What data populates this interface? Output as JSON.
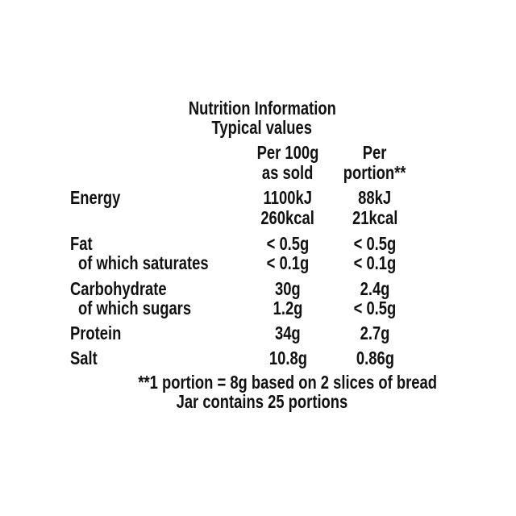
{
  "title": "Nutrition Information",
  "subtitle": "Typical values",
  "columns": [
    {
      "line1": "Per 100g",
      "line2": "as sold"
    },
    {
      "line1": "Per",
      "line2": "portion**"
    }
  ],
  "rows": [
    {
      "label": "Energy",
      "per100g": "1100kJ",
      "perPortion": "88kJ",
      "per100g_2": "260kcal",
      "perPortion_2": "21kcal"
    },
    {
      "label": "Fat",
      "per100g": "< 0.5g",
      "perPortion": "< 0.5g"
    },
    {
      "label": "of which saturates",
      "per100g": "< 0.1g",
      "perPortion": "< 0.1g"
    },
    {
      "label": "Carbohydrate",
      "per100g": "30g",
      "perPortion": "2.4g"
    },
    {
      "label": "of which sugars",
      "per100g": "1.2g",
      "perPortion": "< 0.5g"
    },
    {
      "label": "Protein",
      "per100g": "34g",
      "perPortion": "2.7g"
    },
    {
      "label": "Salt",
      "per100g": "10.8g",
      "perPortion": "0.86g"
    }
  ],
  "footnote": [
    "**1 portion = 8g based on 2 slices of bread",
    "Jar contains 25 portions"
  ]
}
